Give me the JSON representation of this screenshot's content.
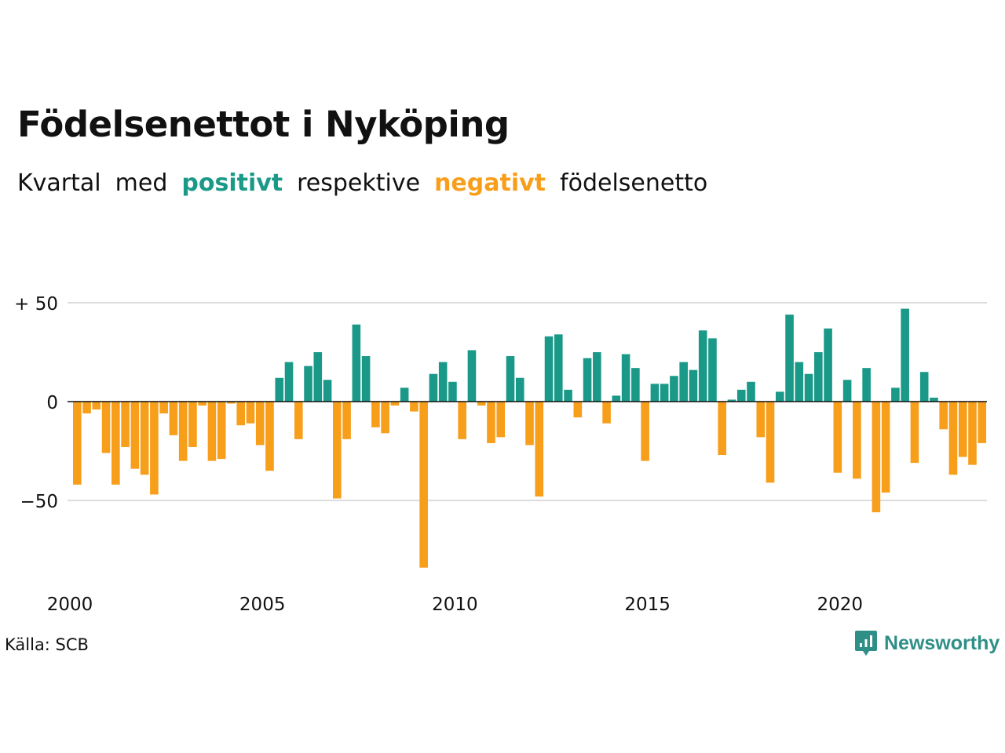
{
  "title": "Födelsenettot i Nyköping",
  "subtitle": {
    "part1": "Kvartal",
    "part2": "med",
    "positive_word": "positivt",
    "part3": "respektive",
    "negative_word": "negativt",
    "part4": "födelsenetto"
  },
  "source": "Källa: SCB",
  "brand": "Newsworthy",
  "colors": {
    "positive": "#1a9988",
    "negative": "#f79e1b",
    "grid": "#dddddd",
    "baseline": "#111111",
    "brand": "#2f8f86"
  },
  "chart_data": {
    "type": "bar",
    "x_start": "2000 Q1",
    "ylim": [
      -88,
      54
    ],
    "yticks": [
      50,
      0,
      -50
    ],
    "ytick_labels": [
      "+ 50",
      "0",
      "−50"
    ],
    "xticks": [
      2000,
      2005,
      2010,
      2015,
      2020
    ],
    "xtick_labels": [
      "2000",
      "2005",
      "2010",
      "2015",
      "2020"
    ],
    "grid": true,
    "values": [
      -42,
      -6,
      -4,
      -26,
      -42,
      -23,
      -34,
      -37,
      -47,
      -6,
      -17,
      -30,
      -23,
      -2,
      -30,
      -29,
      -1,
      -12,
      -11,
      -22,
      -35,
      12,
      20,
      -19,
      18,
      25,
      11,
      -49,
      -19,
      39,
      23,
      -13,
      -16,
      -2,
      7,
      -5,
      -84,
      14,
      20,
      10,
      -19,
      26,
      -2,
      -21,
      -18,
      23,
      12,
      -22,
      -48,
      33,
      34,
      6,
      -8,
      22,
      25,
      -11,
      3,
      24,
      17,
      -30,
      9,
      9,
      13,
      20,
      16,
      36,
      32,
      -27,
      1,
      6,
      10,
      -18,
      -41,
      5,
      44,
      20,
      14,
      25,
      37,
      -36,
      11,
      -39,
      17,
      -56,
      -46,
      7,
      47,
      -31,
      15,
      2,
      -14,
      -37,
      -28,
      -32,
      -21
    ]
  }
}
